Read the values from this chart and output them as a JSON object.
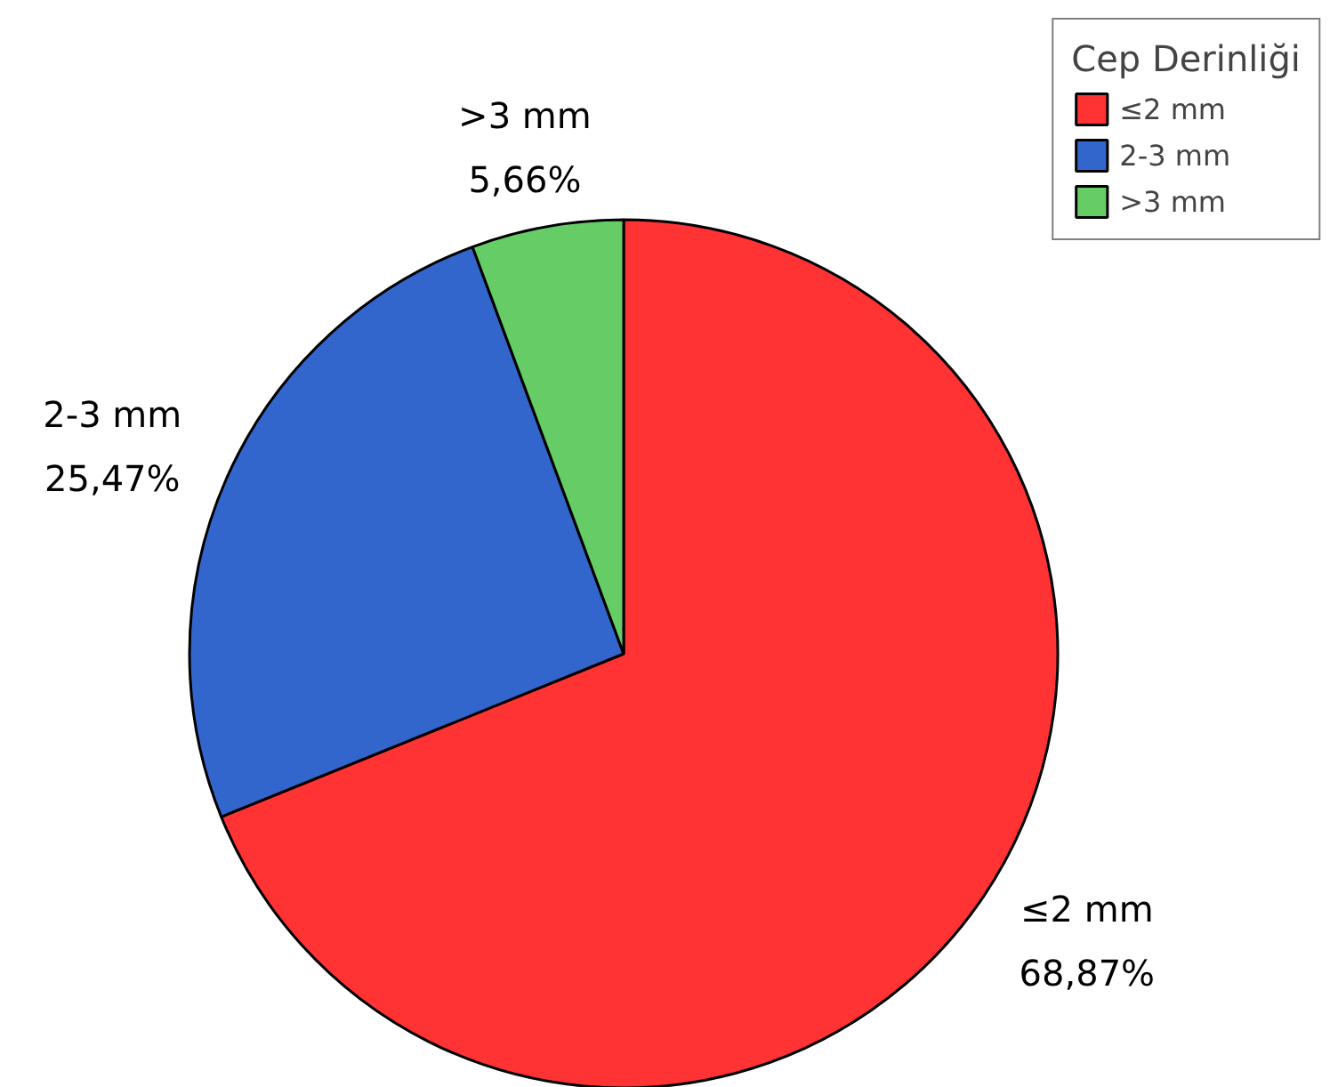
{
  "chart_data": {
    "type": "pie",
    "legend_title": "Cep Derinliği",
    "legend": "top right",
    "categories": [
      "≤2 mm",
      "2-3 mm",
      ">3 mm"
    ],
    "values": [
      68.87,
      25.47,
      5.66
    ],
    "colors": [
      "#ff3333",
      "#3366cc",
      "#66cc66"
    ],
    "value_labels": [
      "68,87%",
      "25,47%",
      "5,66%"
    ]
  }
}
